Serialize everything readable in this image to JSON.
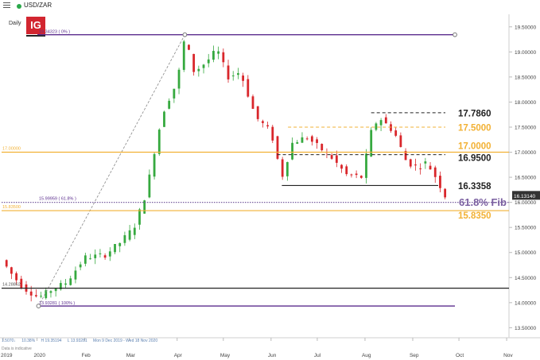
{
  "header": {
    "symbol": "USD/ZAR",
    "period": "Daily",
    "logo": "IG",
    "status_color": "#2aa84a",
    "menu_icon": "hamburger-icon"
  },
  "info": {
    "change": "1.5070↓",
    "pct": "10.38%",
    "high": "H 19.35194",
    "low": "L 13.93281",
    "range": "Mon 9 Dec 2019 - Wed 18 Nov 2020",
    "note": "Data is indicative"
  },
  "chart_data": {
    "type": "candlestick",
    "title": "",
    "x_ticks": [
      "2019",
      "2020",
      "Feb",
      "Mar",
      "Apr",
      "May",
      "Jun",
      "Jul",
      "Aug",
      "Sep",
      "Oct",
      "Nov"
    ],
    "y_ticks": [
      "19.50000",
      "19.00000",
      "18.50000",
      "18.00000",
      "17.50000",
      "17.00000",
      "16.50000",
      "16.00000",
      "15.50000",
      "15.00000",
      "14.50000",
      "14.00000",
      "13.50000"
    ],
    "ylim": [
      13.3,
      19.75
    ],
    "current_price": "16.13140",
    "colors": {
      "up": "#36a93f",
      "down": "#d9262b",
      "purple": "#5b2d8e",
      "orange": "#f2b134",
      "black": "#222222"
    },
    "path": [
      [
        "2019-12-09",
        14.85
      ],
      [
        "2019-12-16",
        14.55
      ],
      [
        "2019-12-23",
        14.3
      ],
      [
        "2020-01-02",
        14.1
      ],
      [
        "2020-01-10",
        14.25
      ],
      [
        "2020-01-20",
        14.4
      ],
      [
        "2020-02-01",
        14.9
      ],
      [
        "2020-02-14",
        14.95
      ],
      [
        "2020-02-24",
        15.2
      ],
      [
        "2020-03-04",
        15.5
      ],
      [
        "2020-03-12",
        16.2
      ],
      [
        "2020-03-19",
        17.3
      ],
      [
        "2020-03-24",
        17.9
      ],
      [
        "2020-04-01",
        18.4
      ],
      [
        "2020-04-06",
        19.3
      ],
      [
        "2020-04-12",
        18.6
      ],
      [
        "2020-04-20",
        18.8
      ],
      [
        "2020-04-27",
        19.05
      ],
      [
        "2020-05-04",
        18.5
      ],
      [
        "2020-05-12",
        18.6
      ],
      [
        "2020-05-22",
        17.7
      ],
      [
        "2020-06-01",
        17.4
      ],
      [
        "2020-06-08",
        16.5
      ],
      [
        "2020-06-15",
        17.2
      ],
      [
        "2020-06-24",
        17.3
      ],
      [
        "2020-07-02",
        17.1
      ],
      [
        "2020-07-10",
        16.9
      ],
      [
        "2020-07-20",
        16.55
      ],
      [
        "2020-07-30",
        16.5
      ],
      [
        "2020-08-05",
        17.4
      ],
      [
        "2020-08-10",
        17.7
      ],
      [
        "2020-08-20",
        17.4
      ],
      [
        "2020-08-28",
        16.8
      ],
      [
        "2020-09-04",
        16.7
      ],
      [
        "2020-09-10",
        16.8
      ],
      [
        "2020-09-16",
        16.5
      ],
      [
        "2020-09-22",
        16.13
      ]
    ],
    "levels": [
      {
        "label": "17.7860",
        "value": 17.786,
        "color": "#222222",
        "style": "dashed",
        "start": "2020-08-05"
      },
      {
        "label": "17.5000",
        "value": 17.5,
        "color": "#f2b134",
        "style": "dashed",
        "start": "2020-06-12"
      },
      {
        "label": "17.0000",
        "value": 17.0,
        "color": "#f2b134",
        "style": "solid",
        "start": "2019-12-09",
        "axis_tag": "17.00000"
      },
      {
        "label": "16.9500",
        "value": 16.95,
        "color": "#222222",
        "style": "dashed",
        "start": "2020-06-05"
      },
      {
        "label": "16.3358",
        "value": 16.3358,
        "color": "#222222",
        "style": "solid",
        "start": "2020-06-08"
      },
      {
        "label": "61.8% Fib",
        "value": 15.99959,
        "color": "#7a5fa0",
        "style": "dotted",
        "start": "2019-12-09",
        "tag": "15.99959 ( 61.8% )"
      },
      {
        "label": "15.8350",
        "value": 15.835,
        "color": "#f2b134",
        "style": "solid",
        "start": "2019-12-09",
        "axis_tag": "15.83500"
      },
      {
        "label": "",
        "value": 14.28862,
        "color": "#222222",
        "style": "solid",
        "start": "2019-12-09",
        "axis_tag": "14.28862"
      }
    ],
    "fib": {
      "high": 19.34323,
      "low": 13.93281,
      "high_date": "2020-04-06",
      "low_date": "2020-01-02",
      "high_label": "19.34323 ( 0% )",
      "low_label": "13.93281 ( 100% )",
      "color": "#5b2d8e"
    }
  }
}
